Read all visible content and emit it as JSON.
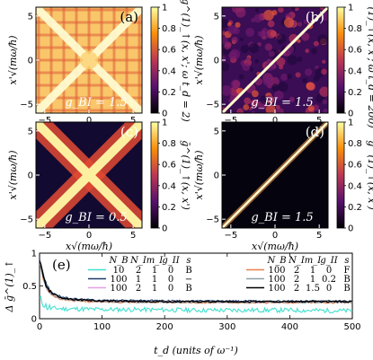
{
  "chart_data": [
    {
      "type": "heatmap",
      "panel": "(a)",
      "annotation": "g_BI = 1.5",
      "xlabel": "",
      "ylabel": "x'√(mω/ħ)",
      "colorbar_label": "g^(1)_↑(x, x'; ω t_d = 2)",
      "x_ticks": [
        "−5",
        "0",
        "5"
      ],
      "y_ticks": [
        "−5",
        "0",
        "5"
      ],
      "xlim": [
        -6,
        6
      ],
      "ylim": [
        -6,
        6
      ],
      "colorbar_ticks": [
        "0",
        "0.2",
        "0.4",
        "0.6",
        "0.8",
        "1"
      ],
      "zlim": [
        0,
        1
      ]
    },
    {
      "type": "heatmap",
      "panel": "(b)",
      "annotation": "g_BI = 1.5",
      "xlabel": "",
      "ylabel": "x'√(mω/ħ)",
      "colorbar_label": "g^(1)_↑(x, x'; ω t_d = 200)",
      "x_ticks": [
        "−5",
        "0",
        "5"
      ],
      "y_ticks": [
        "−5",
        "0",
        "5"
      ],
      "xlim": [
        -6,
        6
      ],
      "ylim": [
        -6,
        6
      ],
      "colorbar_ticks": [
        "0",
        "0.2",
        "0.4",
        "0.6",
        "0.8",
        "1"
      ],
      "zlim": [
        0,
        1
      ]
    },
    {
      "type": "heatmap",
      "panel": "(c)",
      "annotation": "g_BI = 0.5",
      "xlabel": "x√(mω/ħ)",
      "ylabel": "x'√(mω/ħ)",
      "colorbar_label": "ḡ^(1)_↑(x, x')",
      "x_ticks": [
        "−5",
        "0",
        "5"
      ],
      "y_ticks": [
        "−5",
        "0",
        "5"
      ],
      "xlim": [
        -6,
        6
      ],
      "ylim": [
        -6,
        6
      ],
      "colorbar_ticks": [
        "0",
        "0.2",
        "0.4",
        "0.6",
        "0.8",
        "1"
      ],
      "zlim": [
        0,
        1
      ]
    },
    {
      "type": "heatmap",
      "panel": "(d)",
      "annotation": "g_BI = 1.5",
      "xlabel": "x√(mω/ħ)",
      "ylabel": "x'√(mω/ħ)",
      "colorbar_label": "ḡ^(1)_↑(x, x')",
      "x_ticks": [
        "−5",
        "0",
        "5"
      ],
      "y_ticks": [
        "−5",
        "0",
        "5"
      ],
      "xlim": [
        -6,
        6
      ],
      "ylim": [
        -6,
        6
      ],
      "colorbar_ticks": [
        "0",
        "0.2",
        "0.4",
        "0.6",
        "0.8",
        "1"
      ],
      "zlim": [
        0,
        1
      ]
    },
    {
      "type": "line",
      "panel": "(e)",
      "xlabel": "t_d (units of ω⁻¹)",
      "ylabel": "Δ ḡ^(1)_↑",
      "xlim": [
        0,
        500
      ],
      "ylim": [
        0,
        1.0
      ],
      "x_ticks": [
        "0",
        "100",
        "200",
        "300",
        "400",
        "500"
      ],
      "y_ticks": [
        "0",
        "0.5",
        "1"
      ],
      "legend_headers": [
        "N_B",
        "N_I",
        "m_I",
        "g_II",
        "s"
      ],
      "series": [
        {
          "name": "10 2 1 0 B",
          "color": "#40e0d0",
          "x": [
            0,
            5,
            10,
            15,
            20,
            30,
            40,
            60,
            80,
            100,
            150,
            200,
            250,
            300,
            350,
            400,
            450,
            500
          ],
          "y": [
            0.3,
            0.25,
            0.19,
            0.17,
            0.16,
            0.155,
            0.15,
            0.15,
            0.145,
            0.14,
            0.14,
            0.135,
            0.13,
            0.13,
            0.13,
            0.13,
            0.125,
            0.12
          ]
        },
        {
          "name": "100 1 1 0 −",
          "color": "#1a3a6b",
          "x": [
            0,
            5,
            10,
            15,
            20,
            30,
            40,
            60,
            80,
            100,
            150,
            200,
            250,
            300,
            350,
            400,
            450,
            500
          ],
          "y": [
            0.92,
            0.7,
            0.55,
            0.45,
            0.4,
            0.35,
            0.32,
            0.3,
            0.29,
            0.28,
            0.28,
            0.275,
            0.27,
            0.27,
            0.27,
            0.27,
            0.27,
            0.27
          ]
        },
        {
          "name": "100 2 1 0 B",
          "color": "#e6a0e6",
          "x": [
            0,
            5,
            10,
            15,
            20,
            30,
            40,
            60,
            80,
            100,
            150,
            200,
            250,
            300,
            350,
            400,
            450,
            500
          ],
          "y": [
            0.88,
            0.66,
            0.5,
            0.42,
            0.37,
            0.32,
            0.3,
            0.28,
            0.27,
            0.26,
            0.26,
            0.255,
            0.25,
            0.25,
            0.25,
            0.25,
            0.25,
            0.25
          ]
        },
        {
          "name": "100 2 1 0 F",
          "color": "#e8804a",
          "x": [
            0,
            5,
            10,
            15,
            20,
            30,
            40,
            60,
            80,
            100,
            150,
            200,
            250,
            300,
            350,
            400,
            450,
            500
          ],
          "y": [
            0.86,
            0.64,
            0.49,
            0.41,
            0.36,
            0.31,
            0.29,
            0.27,
            0.26,
            0.255,
            0.25,
            0.25,
            0.245,
            0.245,
            0.245,
            0.245,
            0.245,
            0.245
          ]
        },
        {
          "name": "100 2 1 0.2 B",
          "color": "#8fa0a8",
          "x": [
            0,
            5,
            10,
            15,
            20,
            30,
            40,
            60,
            80,
            100,
            150,
            200,
            250,
            300,
            350,
            400,
            450,
            500
          ],
          "y": [
            0.87,
            0.65,
            0.5,
            0.42,
            0.37,
            0.32,
            0.3,
            0.28,
            0.27,
            0.26,
            0.255,
            0.25,
            0.25,
            0.25,
            0.25,
            0.25,
            0.25,
            0.25
          ]
        },
        {
          "name": "100 2 1.5 0 B",
          "color": "#000000",
          "x": [
            0,
            5,
            10,
            15,
            20,
            30,
            40,
            60,
            80,
            100,
            150,
            200,
            250,
            300,
            350,
            400,
            450,
            500
          ],
          "y": [
            0.9,
            0.68,
            0.52,
            0.44,
            0.39,
            0.34,
            0.31,
            0.29,
            0.28,
            0.27,
            0.265,
            0.26,
            0.26,
            0.26,
            0.26,
            0.26,
            0.26,
            0.26
          ]
        }
      ],
      "legend_rows_left": [
        {
          "cells": [
            "10",
            "2",
            "1",
            "0",
            "B"
          ],
          "series": 0
        },
        {
          "cells": [
            "100",
            "1",
            "1",
            "0",
            "−"
          ],
          "series": 1
        },
        {
          "cells": [
            "100",
            "2",
            "1",
            "0",
            "B"
          ],
          "series": 2
        }
      ],
      "legend_rows_right": [
        {
          "cells": [
            "100",
            "2",
            "1",
            "0",
            "F"
          ],
          "series": 3
        },
        {
          "cells": [
            "100",
            "2",
            "1",
            "0.2",
            "B"
          ],
          "series": 4
        },
        {
          "cells": [
            "100",
            "2",
            "1.5",
            "0",
            "B"
          ],
          "series": 5
        }
      ]
    }
  ]
}
